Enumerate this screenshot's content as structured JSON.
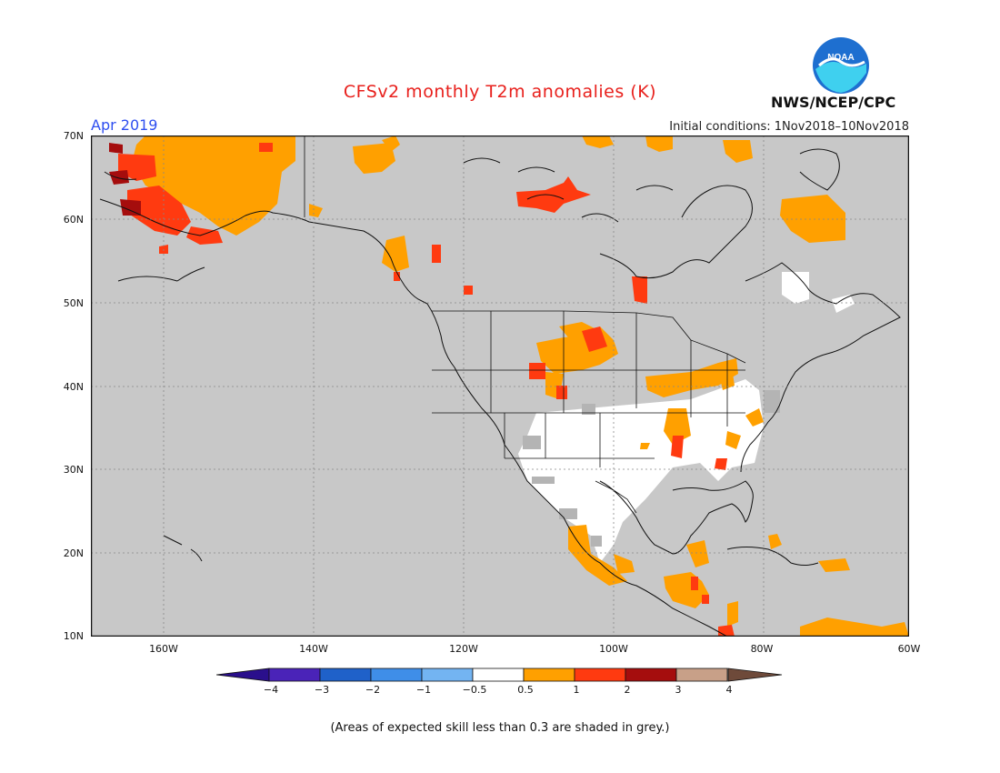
{
  "header": {
    "title": "CFSv2 monthly T2m anomalies (K)",
    "period": "Apr 2019",
    "initial_conditions": "Initial conditions: 1Nov2018–10Nov2018",
    "agency": "NWS/NCEP/CPC",
    "logo_text": "NOAA"
  },
  "map": {
    "background": "#c8c8c8",
    "lat_labels": [
      "70N",
      "60N",
      "50N",
      "40N",
      "30N",
      "20N",
      "10N"
    ],
    "lon_labels": [
      "160W",
      "140W",
      "120W",
      "100W",
      "80W",
      "60W"
    ],
    "regions": [
      {
        "name": "alaska-warm",
        "class": "1"
      },
      {
        "name": "alaska-core",
        "class": "2"
      },
      {
        "name": "alaska-hot",
        "class": "3"
      },
      {
        "name": "canada-arctic",
        "class": "1"
      },
      {
        "name": "northwest-territories",
        "class": "2"
      },
      {
        "name": "central-us",
        "class": "0.5"
      },
      {
        "name": "southern-us-neutral",
        "class": "0"
      },
      {
        "name": "southeast-us",
        "class": "1"
      },
      {
        "name": "mexico-central-america",
        "class": "1"
      },
      {
        "name": "labrador",
        "class": "1"
      },
      {
        "name": "quebec-neutral",
        "class": "0"
      },
      {
        "name": "caribbean",
        "class": "1"
      }
    ]
  },
  "colorbar": {
    "labels": [
      "−4",
      "−3",
      "−2",
      "−1",
      "−0.5",
      "0.5",
      "1",
      "2",
      "3",
      "4"
    ],
    "colors": [
      "#4a23b8",
      "#1f61c9",
      "#3f8ee8",
      "#73b4f2",
      "#ffffff",
      "#ffa000",
      "#ff3a10",
      "#a50d0d",
      "#c8a088"
    ],
    "low_end_color": "#2a0f8c",
    "high_end_color": "#6e4a3a"
  },
  "footnote": "(Areas of expected skill less than 0.3 are shaded in grey.)"
}
